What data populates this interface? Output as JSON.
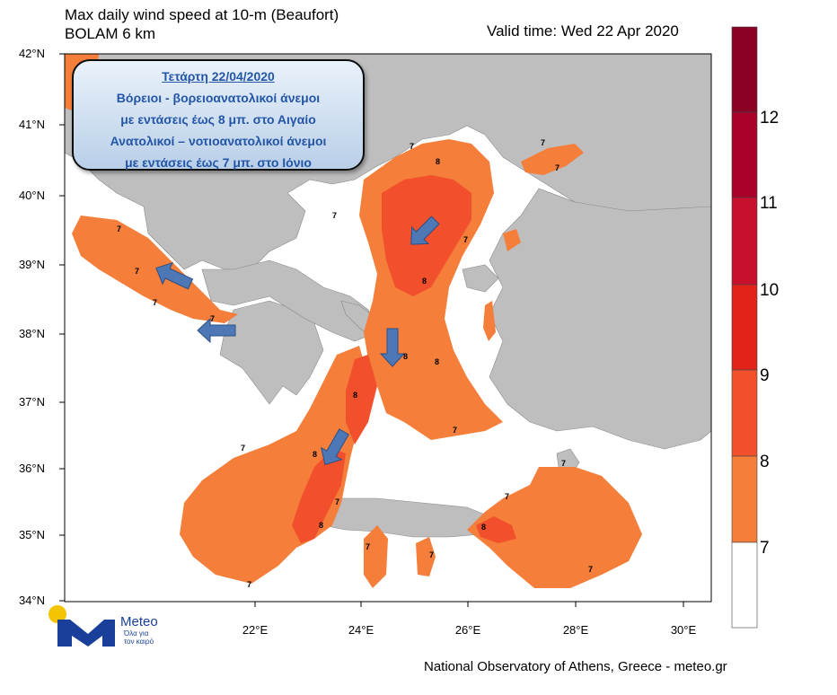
{
  "header": {
    "title_line1": "Max daily wind speed at 10-m (Beaufort)",
    "title_line2": "BOLAM 6 km",
    "valid_time": "Valid time: Wed 22 Apr 2020"
  },
  "footer": {
    "credit": "National Observatory of Athens, Greece - meteo.gr"
  },
  "axes": {
    "lat_labels": [
      "42°N",
      "41°N",
      "40°N",
      "39°N",
      "38°N",
      "37°N",
      "36°N",
      "35°N",
      "34°N"
    ],
    "lon_labels": [
      "22°E",
      "24°E",
      "26°E",
      "28°E",
      "30°E"
    ]
  },
  "colorbar": {
    "labels": [
      "12",
      "11",
      "10",
      "9",
      "8",
      "7"
    ],
    "colors": [
      "#8a0022",
      "#a80028",
      "#c8102e",
      "#e2231a",
      "#f2502c",
      "#f47e3a",
      "#ffffff"
    ]
  },
  "info_box": {
    "date": "Τετάρτη 22/04/2020",
    "line1": "Βόρειοι - βορειοανατολικοί άνεμοι",
    "line2": "με εντάσεις έως 8 μπ. στο Αιγαίο",
    "line3": "Ανατολικοί – νοτιοανατολικοί άνεμοι",
    "line4": "με εντάσεις έως 7 μπ. στο Ιόνιο"
  },
  "contour_labels": [
    "7",
    "8"
  ],
  "logo": {
    "name": "Meteo",
    "tagline_1": "Όλα για",
    "tagline_2": "τον καιρό"
  },
  "colors": {
    "land": "#bebebe",
    "sea": "#ffffff",
    "bf7": "#f47e3a",
    "bf8": "#f2502c",
    "arrow": "#4d78b5"
  }
}
